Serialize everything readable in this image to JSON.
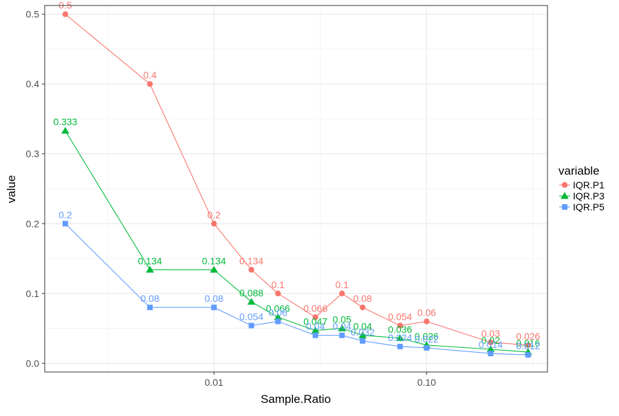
{
  "chart_data": {
    "type": "line",
    "xscale": "log10",
    "x": [
      0.002,
      0.005,
      0.01,
      0.015,
      0.02,
      0.03,
      0.04,
      0.05,
      0.075,
      0.1,
      0.2,
      0.3
    ],
    "xlim": [
      0.0016,
      0.37
    ],
    "ylim": [
      -0.0125,
      0.5125
    ],
    "xticks": [
      0.01,
      0.1
    ],
    "xtick_labels": [
      "0.01",
      "0.10"
    ],
    "xminor": [
      0.003162,
      0.031623,
      0.316228
    ],
    "yticks": [
      0,
      0.1,
      0.2,
      0.3,
      0.4,
      0.5
    ],
    "ytick_labels": [
      "0.0",
      "0.1",
      "0.2",
      "0.3",
      "0.4",
      "0.5"
    ],
    "yminor": [
      0.05,
      0.15,
      0.25,
      0.35,
      0.45
    ],
    "xlabel": "Sample.Ratio",
    "ylabel": "value",
    "legend": {
      "title": "variable",
      "position": "right"
    },
    "series": [
      {
        "name": "IQR.P1",
        "color": "#F8766D",
        "shape": "circle",
        "values": [
          0.5,
          0.4,
          0.2,
          0.134,
          0.1,
          0.066,
          0.1,
          0.08,
          0.054,
          0.06,
          0.03,
          0.026
        ],
        "labels": [
          "0.5",
          "0.4",
          "0.2",
          "0.134",
          "0.1",
          "0.066",
          "0.1",
          "0.08",
          "0.054",
          "0.06",
          "0.03",
          "0.026"
        ]
      },
      {
        "name": "IQR.P3",
        "color": "#00BA38",
        "shape": "triangle",
        "values": [
          0.333,
          0.134,
          0.134,
          0.088,
          0.066,
          0.047,
          0.05,
          0.04,
          0.036,
          0.026,
          0.02,
          0.016
        ],
        "labels": [
          "0.333",
          "0.134",
          "0.134",
          "0.088",
          "0.066",
          "0.047",
          "0.05",
          "0.04",
          "0.036",
          "0.026",
          "0.02",
          "0.016"
        ]
      },
      {
        "name": "IQR.P5",
        "color": "#619CFF",
        "shape": "square",
        "values": [
          0.2,
          0.08,
          0.08,
          0.054,
          0.06,
          0.04,
          0.04,
          0.032,
          0.024,
          0.022,
          0.014,
          0.012
        ],
        "labels": [
          "0.2",
          "0.08",
          "0.08",
          "0.054",
          "0.06",
          "0.04",
          "0.04",
          "0.032",
          "0.024",
          "0.022",
          "0.014",
          "0.012"
        ]
      }
    ]
  }
}
